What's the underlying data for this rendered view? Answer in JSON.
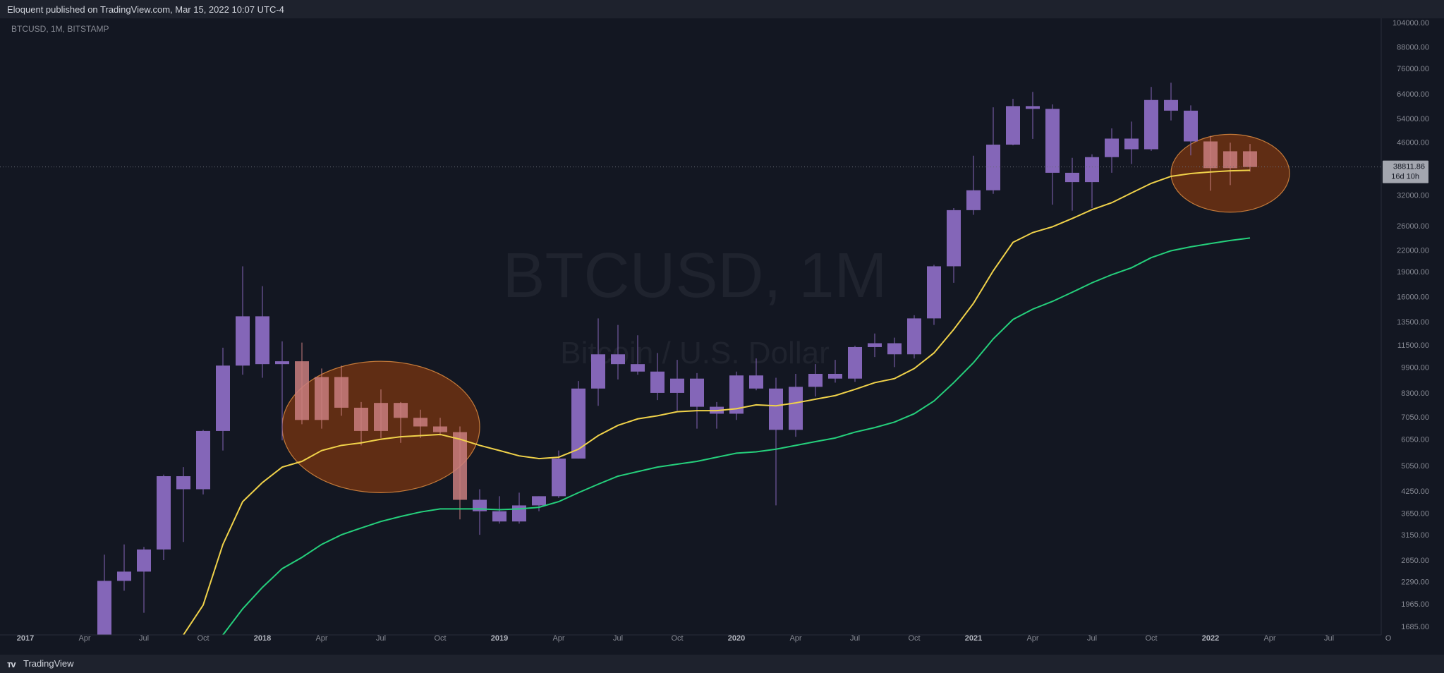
{
  "header": {
    "published_by": "Eloquent published on TradingView.com, Mar 15, 2022 10:07 UTC-4"
  },
  "footer": {
    "brand": "TradingView",
    "logo": "tradingview-logo-icon"
  },
  "colors": {
    "background": "#131722",
    "frame": "#1e222d",
    "candle": "#8466b8",
    "candle_highlight": "#c97e7e",
    "ma_fast": "#f0d24a",
    "ma_slow": "#25d07c",
    "ellipse_fill": "#7b3510",
    "ellipse_stroke": "#c47a3a",
    "text": "#868993"
  },
  "chart_data": {
    "type": "candlestick",
    "symbol_label": "BTCUSD, 1M, BITSTAMP",
    "watermark_title": "BTCUSD, 1M",
    "watermark_subtitle": "Bitcoin / U.S. Dollar",
    "y_scale": "log",
    "ylim": [
      1550,
      104000
    ],
    "price_tick_labels": [
      "104000.00",
      "88000.00",
      "76000.00",
      "64000.00",
      "54000.00",
      "46000.00",
      "32000.00",
      "26000.00",
      "22000.00",
      "19000.00",
      "16000.00",
      "13500.00",
      "11500.00",
      "9900.00",
      "8300.00",
      "7050.00",
      "6050.00",
      "5050.00",
      "4250.00",
      "3650.00",
      "3150.00",
      "2650.00",
      "2290.00",
      "1965.00",
      "1685.00"
    ],
    "time_tick_labels": [
      {
        "label": "2017",
        "date": "2017-01",
        "bold": true
      },
      {
        "label": "Apr",
        "date": "2017-04"
      },
      {
        "label": "Jul",
        "date": "2017-07"
      },
      {
        "label": "Oct",
        "date": "2017-10"
      },
      {
        "label": "2018",
        "date": "2018-01",
        "bold": true
      },
      {
        "label": "Apr",
        "date": "2018-04"
      },
      {
        "label": "Jul",
        "date": "2018-07"
      },
      {
        "label": "Oct",
        "date": "2018-10"
      },
      {
        "label": "2019",
        "date": "2019-01",
        "bold": true
      },
      {
        "label": "Apr",
        "date": "2019-04"
      },
      {
        "label": "Jul",
        "date": "2019-07"
      },
      {
        "label": "Oct",
        "date": "2019-10"
      },
      {
        "label": "2020",
        "date": "2020-01",
        "bold": true
      },
      {
        "label": "Apr",
        "date": "2020-04"
      },
      {
        "label": "Jul",
        "date": "2020-07"
      },
      {
        "label": "Oct",
        "date": "2020-10"
      },
      {
        "label": "2021",
        "date": "2021-01",
        "bold": true
      },
      {
        "label": "Apr",
        "date": "2021-04"
      },
      {
        "label": "Jul",
        "date": "2021-07"
      },
      {
        "label": "Oct",
        "date": "2021-10"
      },
      {
        "label": "2022",
        "date": "2022-01",
        "bold": true
      },
      {
        "label": "Apr",
        "date": "2022-04"
      },
      {
        "label": "Jul",
        "date": "2022-07"
      },
      {
        "label": "O",
        "date": "2022-10"
      }
    ],
    "candles": [
      {
        "date": "2017-05",
        "open": 1350,
        "high": 2750,
        "low": 1350,
        "close": 2300
      },
      {
        "date": "2017-06",
        "open": 2300,
        "high": 2950,
        "low": 2150,
        "close": 2450
      },
      {
        "date": "2017-07",
        "open": 2450,
        "high": 2900,
        "low": 1850,
        "close": 2850
      },
      {
        "date": "2017-08",
        "open": 2850,
        "high": 4750,
        "low": 2650,
        "close": 4700
      },
      {
        "date": "2017-09",
        "open": 4700,
        "high": 5000,
        "low": 3000,
        "close": 4300
      },
      {
        "date": "2017-10",
        "open": 4300,
        "high": 6450,
        "low": 4150,
        "close": 6400
      },
      {
        "date": "2017-11",
        "open": 6400,
        "high": 11300,
        "low": 5600,
        "close": 10000
      },
      {
        "date": "2017-12",
        "open": 10000,
        "high": 19700,
        "low": 9400,
        "close": 14000
      },
      {
        "date": "2018-01",
        "open": 14000,
        "high": 17200,
        "low": 9200,
        "close": 10100
      },
      {
        "date": "2018-02",
        "open": 10100,
        "high": 11800,
        "low": 6000,
        "close": 10300
      },
      {
        "date": "2018-03",
        "open": 10300,
        "high": 11700,
        "low": 6700,
        "close": 6900
      },
      {
        "date": "2018-04",
        "open": 6900,
        "high": 9800,
        "low": 6500,
        "close": 9250
      },
      {
        "date": "2018-05",
        "open": 9250,
        "high": 10000,
        "low": 7100,
        "close": 7500
      },
      {
        "date": "2018-06",
        "open": 7500,
        "high": 7800,
        "low": 5800,
        "close": 6400
      },
      {
        "date": "2018-07",
        "open": 6400,
        "high": 8500,
        "low": 6100,
        "close": 7750
      },
      {
        "date": "2018-08",
        "open": 7750,
        "high": 7800,
        "low": 5900,
        "close": 7000
      },
      {
        "date": "2018-09",
        "open": 7000,
        "high": 7400,
        "low": 6100,
        "close": 6600
      },
      {
        "date": "2018-10",
        "open": 6600,
        "high": 7000,
        "low": 6200,
        "close": 6350
      },
      {
        "date": "2018-11",
        "open": 6350,
        "high": 6600,
        "low": 3500,
        "close": 4000
      },
      {
        "date": "2018-12",
        "open": 4000,
        "high": 4300,
        "low": 3150,
        "close": 3700
      },
      {
        "date": "2019-01",
        "open": 3700,
        "high": 4100,
        "low": 3400,
        "close": 3450
      },
      {
        "date": "2019-02",
        "open": 3450,
        "high": 4200,
        "low": 3400,
        "close": 3850
      },
      {
        "date": "2019-03",
        "open": 3850,
        "high": 4100,
        "low": 3700,
        "close": 4100
      },
      {
        "date": "2019-04",
        "open": 4100,
        "high": 5600,
        "low": 4050,
        "close": 5300
      },
      {
        "date": "2019-05",
        "open": 5300,
        "high": 9000,
        "low": 5300,
        "close": 8550
      },
      {
        "date": "2019-06",
        "open": 8550,
        "high": 13800,
        "low": 7600,
        "close": 10800
      },
      {
        "date": "2019-07",
        "open": 10800,
        "high": 13200,
        "low": 9100,
        "close": 10100
      },
      {
        "date": "2019-08",
        "open": 10100,
        "high": 12300,
        "low": 9400,
        "close": 9600
      },
      {
        "date": "2019-09",
        "open": 9600,
        "high": 10900,
        "low": 7900,
        "close": 8300
      },
      {
        "date": "2019-10",
        "open": 8300,
        "high": 10400,
        "low": 7350,
        "close": 9150
      },
      {
        "date": "2019-11",
        "open": 9150,
        "high": 9500,
        "low": 6500,
        "close": 7550
      },
      {
        "date": "2019-12",
        "open": 7550,
        "high": 7800,
        "low": 6500,
        "close": 7200
      },
      {
        "date": "2020-01",
        "open": 7200,
        "high": 9600,
        "low": 6900,
        "close": 9350
      },
      {
        "date": "2020-02",
        "open": 9350,
        "high": 10500,
        "low": 8450,
        "close": 8550
      },
      {
        "date": "2020-03",
        "open": 8550,
        "high": 9200,
        "low": 3850,
        "close": 6450
      },
      {
        "date": "2020-04",
        "open": 6450,
        "high": 9450,
        "low": 6150,
        "close": 8650
      },
      {
        "date": "2020-05",
        "open": 8650,
        "high": 10100,
        "low": 8100,
        "close": 9450
      },
      {
        "date": "2020-06",
        "open": 9450,
        "high": 10400,
        "low": 8900,
        "close": 9150
      },
      {
        "date": "2020-07",
        "open": 9150,
        "high": 11450,
        "low": 8950,
        "close": 11350
      },
      {
        "date": "2020-08",
        "open": 11350,
        "high": 12450,
        "low": 10600,
        "close": 11650
      },
      {
        "date": "2020-09",
        "open": 11650,
        "high": 12100,
        "low": 9900,
        "close": 10800
      },
      {
        "date": "2020-10",
        "open": 10800,
        "high": 14100,
        "low": 10500,
        "close": 13800
      },
      {
        "date": "2020-11",
        "open": 13800,
        "high": 19900,
        "low": 13200,
        "close": 19700
      },
      {
        "date": "2020-12",
        "open": 19700,
        "high": 29300,
        "low": 17600,
        "close": 28900
      },
      {
        "date": "2021-01",
        "open": 28900,
        "high": 41900,
        "low": 28000,
        "close": 33100
      },
      {
        "date": "2021-02",
        "open": 33100,
        "high": 58300,
        "low": 32300,
        "close": 45200
      },
      {
        "date": "2021-03",
        "open": 45200,
        "high": 61800,
        "low": 45000,
        "close": 58800
      },
      {
        "date": "2021-04",
        "open": 58800,
        "high": 64800,
        "low": 47000,
        "close": 57700
      },
      {
        "date": "2021-05",
        "open": 57700,
        "high": 59500,
        "low": 30000,
        "close": 37300
      },
      {
        "date": "2021-06",
        "open": 37300,
        "high": 41300,
        "low": 28800,
        "close": 35000
      },
      {
        "date": "2021-07",
        "open": 35000,
        "high": 42300,
        "low": 29300,
        "close": 41500
      },
      {
        "date": "2021-08",
        "open": 41500,
        "high": 50500,
        "low": 37300,
        "close": 47100
      },
      {
        "date": "2021-09",
        "open": 47100,
        "high": 52900,
        "low": 39600,
        "close": 43800
      },
      {
        "date": "2021-10",
        "open": 43800,
        "high": 67000,
        "low": 43300,
        "close": 61300
      },
      {
        "date": "2021-11",
        "open": 61300,
        "high": 69000,
        "low": 53300,
        "close": 57000
      },
      {
        "date": "2021-12",
        "open": 57000,
        "high": 59100,
        "low": 42000,
        "close": 46200
      },
      {
        "date": "2022-01",
        "open": 46200,
        "high": 48000,
        "low": 33000,
        "close": 38500
      },
      {
        "date": "2022-02",
        "open": 38500,
        "high": 45800,
        "low": 34300,
        "close": 43200
      },
      {
        "date": "2022-03",
        "open": 43200,
        "high": 45400,
        "low": 37600,
        "close": 38800
      }
    ],
    "series": [
      {
        "color": "#f0d24a",
        "points": [
          [
            "2017-09",
            1550
          ],
          [
            "2017-10",
            1950
          ],
          [
            "2017-11",
            2950
          ],
          [
            "2017-12",
            3950
          ],
          [
            "2018-01",
            4500
          ],
          [
            "2018-02",
            5000
          ],
          [
            "2018-03",
            5200
          ],
          [
            "2018-04",
            5600
          ],
          [
            "2018-05",
            5800
          ],
          [
            "2018-06",
            5900
          ],
          [
            "2018-07",
            6050
          ],
          [
            "2018-08",
            6150
          ],
          [
            "2018-09",
            6200
          ],
          [
            "2018-10",
            6250
          ],
          [
            "2018-11",
            6050
          ],
          [
            "2018-12",
            5800
          ],
          [
            "2019-01",
            5600
          ],
          [
            "2019-02",
            5400
          ],
          [
            "2019-03",
            5300
          ],
          [
            "2019-04",
            5350
          ],
          [
            "2019-05",
            5650
          ],
          [
            "2019-06",
            6200
          ],
          [
            "2019-07",
            6650
          ],
          [
            "2019-08",
            6950
          ],
          [
            "2019-09",
            7100
          ],
          [
            "2019-10",
            7300
          ],
          [
            "2019-11",
            7350
          ],
          [
            "2019-12",
            7350
          ],
          [
            "2020-01",
            7450
          ],
          [
            "2020-02",
            7650
          ],
          [
            "2020-03",
            7600
          ],
          [
            "2020-04",
            7750
          ],
          [
            "2020-05",
            7950
          ],
          [
            "2020-06",
            8150
          ],
          [
            "2020-07",
            8500
          ],
          [
            "2020-08",
            8900
          ],
          [
            "2020-09",
            9150
          ],
          [
            "2020-10",
            9800
          ],
          [
            "2020-11",
            10900
          ],
          [
            "2020-12",
            12800
          ],
          [
            "2021-01",
            15300
          ],
          [
            "2021-02",
            19100
          ],
          [
            "2021-03",
            23200
          ],
          [
            "2021-04",
            24800
          ],
          [
            "2021-05",
            25800
          ],
          [
            "2021-06",
            27300
          ],
          [
            "2021-07",
            29000
          ],
          [
            "2021-08",
            30400
          ],
          [
            "2021-09",
            32500
          ],
          [
            "2021-10",
            34700
          ],
          [
            "2021-11",
            36400
          ],
          [
            "2021-12",
            37100
          ],
          [
            "2022-01",
            37500
          ],
          [
            "2022-02",
            37800
          ],
          [
            "2022-03",
            37950
          ]
        ]
      },
      {
        "color": "#25d07c",
        "points": [
          [
            "2017-11",
            1550
          ],
          [
            "2017-12",
            1900
          ],
          [
            "2018-01",
            2200
          ],
          [
            "2018-02",
            2500
          ],
          [
            "2018-03",
            2700
          ],
          [
            "2018-04",
            2950
          ],
          [
            "2018-05",
            3150
          ],
          [
            "2018-06",
            3300
          ],
          [
            "2018-07",
            3450
          ],
          [
            "2018-08",
            3570
          ],
          [
            "2018-09",
            3680
          ],
          [
            "2018-10",
            3760
          ],
          [
            "2018-11",
            3760
          ],
          [
            "2018-12",
            3760
          ],
          [
            "2019-01",
            3740
          ],
          [
            "2019-02",
            3760
          ],
          [
            "2019-03",
            3800
          ],
          [
            "2019-04",
            3950
          ],
          [
            "2019-05",
            4200
          ],
          [
            "2019-06",
            4450
          ],
          [
            "2019-07",
            4700
          ],
          [
            "2019-08",
            4850
          ],
          [
            "2019-09",
            5000
          ],
          [
            "2019-10",
            5100
          ],
          [
            "2019-11",
            5200
          ],
          [
            "2019-12",
            5350
          ],
          [
            "2020-01",
            5500
          ],
          [
            "2020-02",
            5550
          ],
          [
            "2020-03",
            5650
          ],
          [
            "2020-04",
            5800
          ],
          [
            "2020-05",
            5950
          ],
          [
            "2020-06",
            6100
          ],
          [
            "2020-07",
            6350
          ],
          [
            "2020-08",
            6550
          ],
          [
            "2020-09",
            6800
          ],
          [
            "2020-10",
            7200
          ],
          [
            "2020-11",
            7850
          ],
          [
            "2020-12",
            8900
          ],
          [
            "2021-01",
            10200
          ],
          [
            "2021-02",
            12000
          ],
          [
            "2021-03",
            13700
          ],
          [
            "2021-04",
            14700
          ],
          [
            "2021-05",
            15500
          ],
          [
            "2021-06",
            16500
          ],
          [
            "2021-07",
            17600
          ],
          [
            "2021-08",
            18600
          ],
          [
            "2021-09",
            19500
          ],
          [
            "2021-10",
            20900
          ],
          [
            "2021-11",
            21900
          ],
          [
            "2021-12",
            22500
          ],
          [
            "2022-01",
            23000
          ],
          [
            "2022-02",
            23500
          ],
          [
            "2022-03",
            23900
          ]
        ]
      }
    ],
    "highlight_ellipses": [
      {
        "x_from": "2018-02",
        "x_to": "2018-12",
        "y_from": 4200,
        "y_to": 10300
      },
      {
        "x_from": "2021-11",
        "x_to": "2022-05",
        "y_from": 28500,
        "y_to": 48500
      }
    ],
    "current_price": {
      "value": 38811.86,
      "label": "38811.86",
      "countdown": "16d 10h"
    }
  }
}
